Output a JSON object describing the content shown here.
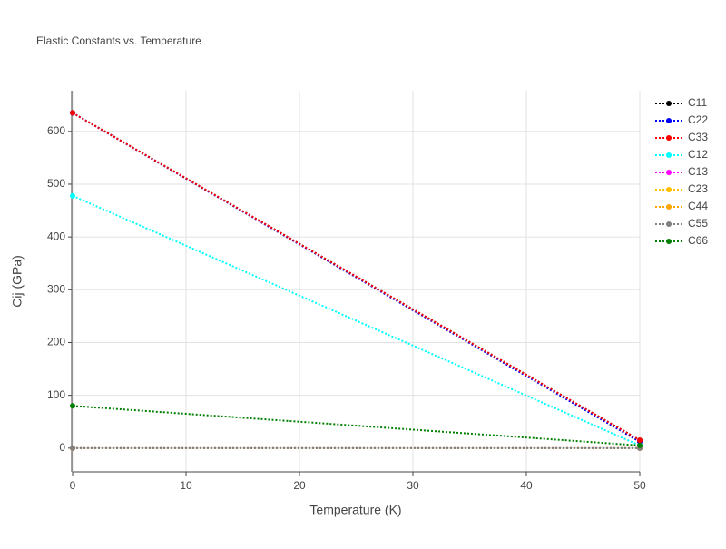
{
  "chart_data": {
    "type": "line",
    "title": "Elastic Constants vs. Temperature",
    "x_label": "Temperature (K)",
    "y_label": "Cij (GPa)",
    "x": [
      0,
      50
    ],
    "series": [
      {
        "name": "C11",
        "color": "#000000",
        "values": [
          635,
          15
        ]
      },
      {
        "name": "C22",
        "color": "#0000ff",
        "values": [
          635,
          12
        ]
      },
      {
        "name": "C33",
        "color": "#ff0000",
        "values": [
          635,
          15
        ]
      },
      {
        "name": "C12",
        "color": "#00ffff",
        "values": [
          478,
          5
        ]
      },
      {
        "name": "C13",
        "color": "#ff00ff",
        "values": [
          0,
          0
        ]
      },
      {
        "name": "C23",
        "color": "#ffc000",
        "values": [
          0,
          0
        ]
      },
      {
        "name": "C44",
        "color": "#ffa500",
        "values": [
          0,
          0
        ]
      },
      {
        "name": "C55",
        "color": "#808080",
        "values": [
          0,
          0
        ]
      },
      {
        "name": "C66",
        "color": "#008000",
        "values": [
          80,
          5
        ]
      }
    ],
    "xlim": [
      0,
      50
    ],
    "xticks": [
      0,
      10,
      20,
      30,
      40,
      50
    ],
    "ylim": [
      -45,
      677
    ],
    "yticks": [
      0,
      100,
      200,
      300,
      400,
      500,
      600
    ],
    "grid": true,
    "legend": "right"
  }
}
